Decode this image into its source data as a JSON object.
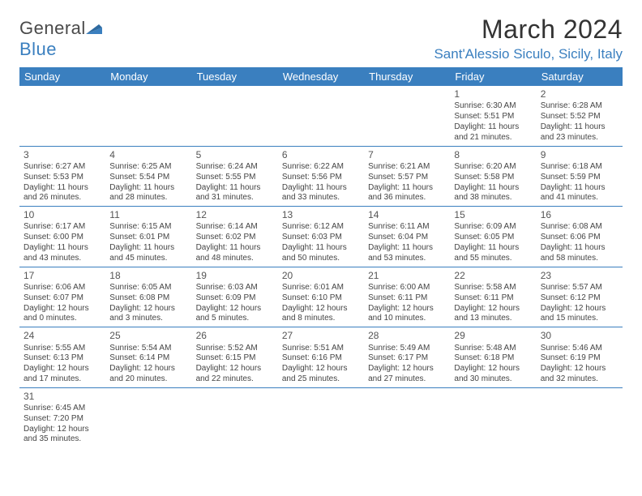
{
  "logo": {
    "textA": "General",
    "textB": "Blue"
  },
  "title": "March 2024",
  "location": "Sant'Alessio Siculo, Sicily, Italy",
  "colors": {
    "brand": "#3a7fbf",
    "headerBg": "#3a7fbf",
    "headerText": "#ffffff",
    "cellBorder": "#3a7fbf",
    "text": "#444444",
    "titleText": "#333333"
  },
  "weekdays": [
    "Sunday",
    "Monday",
    "Tuesday",
    "Wednesday",
    "Thursday",
    "Friday",
    "Saturday"
  ],
  "weeks": [
    [
      null,
      null,
      null,
      null,
      null,
      {
        "n": "1",
        "sr": "Sunrise: 6:30 AM",
        "ss": "Sunset: 5:51 PM",
        "d1": "Daylight: 11 hours",
        "d2": "and 21 minutes."
      },
      {
        "n": "2",
        "sr": "Sunrise: 6:28 AM",
        "ss": "Sunset: 5:52 PM",
        "d1": "Daylight: 11 hours",
        "d2": "and 23 minutes."
      }
    ],
    [
      {
        "n": "3",
        "sr": "Sunrise: 6:27 AM",
        "ss": "Sunset: 5:53 PM",
        "d1": "Daylight: 11 hours",
        "d2": "and 26 minutes."
      },
      {
        "n": "4",
        "sr": "Sunrise: 6:25 AM",
        "ss": "Sunset: 5:54 PM",
        "d1": "Daylight: 11 hours",
        "d2": "and 28 minutes."
      },
      {
        "n": "5",
        "sr": "Sunrise: 6:24 AM",
        "ss": "Sunset: 5:55 PM",
        "d1": "Daylight: 11 hours",
        "d2": "and 31 minutes."
      },
      {
        "n": "6",
        "sr": "Sunrise: 6:22 AM",
        "ss": "Sunset: 5:56 PM",
        "d1": "Daylight: 11 hours",
        "d2": "and 33 minutes."
      },
      {
        "n": "7",
        "sr": "Sunrise: 6:21 AM",
        "ss": "Sunset: 5:57 PM",
        "d1": "Daylight: 11 hours",
        "d2": "and 36 minutes."
      },
      {
        "n": "8",
        "sr": "Sunrise: 6:20 AM",
        "ss": "Sunset: 5:58 PM",
        "d1": "Daylight: 11 hours",
        "d2": "and 38 minutes."
      },
      {
        "n": "9",
        "sr": "Sunrise: 6:18 AM",
        "ss": "Sunset: 5:59 PM",
        "d1": "Daylight: 11 hours",
        "d2": "and 41 minutes."
      }
    ],
    [
      {
        "n": "10",
        "sr": "Sunrise: 6:17 AM",
        "ss": "Sunset: 6:00 PM",
        "d1": "Daylight: 11 hours",
        "d2": "and 43 minutes."
      },
      {
        "n": "11",
        "sr": "Sunrise: 6:15 AM",
        "ss": "Sunset: 6:01 PM",
        "d1": "Daylight: 11 hours",
        "d2": "and 45 minutes."
      },
      {
        "n": "12",
        "sr": "Sunrise: 6:14 AM",
        "ss": "Sunset: 6:02 PM",
        "d1": "Daylight: 11 hours",
        "d2": "and 48 minutes."
      },
      {
        "n": "13",
        "sr": "Sunrise: 6:12 AM",
        "ss": "Sunset: 6:03 PM",
        "d1": "Daylight: 11 hours",
        "d2": "and 50 minutes."
      },
      {
        "n": "14",
        "sr": "Sunrise: 6:11 AM",
        "ss": "Sunset: 6:04 PM",
        "d1": "Daylight: 11 hours",
        "d2": "and 53 minutes."
      },
      {
        "n": "15",
        "sr": "Sunrise: 6:09 AM",
        "ss": "Sunset: 6:05 PM",
        "d1": "Daylight: 11 hours",
        "d2": "and 55 minutes."
      },
      {
        "n": "16",
        "sr": "Sunrise: 6:08 AM",
        "ss": "Sunset: 6:06 PM",
        "d1": "Daylight: 11 hours",
        "d2": "and 58 minutes."
      }
    ],
    [
      {
        "n": "17",
        "sr": "Sunrise: 6:06 AM",
        "ss": "Sunset: 6:07 PM",
        "d1": "Daylight: 12 hours",
        "d2": "and 0 minutes."
      },
      {
        "n": "18",
        "sr": "Sunrise: 6:05 AM",
        "ss": "Sunset: 6:08 PM",
        "d1": "Daylight: 12 hours",
        "d2": "and 3 minutes."
      },
      {
        "n": "19",
        "sr": "Sunrise: 6:03 AM",
        "ss": "Sunset: 6:09 PM",
        "d1": "Daylight: 12 hours",
        "d2": "and 5 minutes."
      },
      {
        "n": "20",
        "sr": "Sunrise: 6:01 AM",
        "ss": "Sunset: 6:10 PM",
        "d1": "Daylight: 12 hours",
        "d2": "and 8 minutes."
      },
      {
        "n": "21",
        "sr": "Sunrise: 6:00 AM",
        "ss": "Sunset: 6:11 PM",
        "d1": "Daylight: 12 hours",
        "d2": "and 10 minutes."
      },
      {
        "n": "22",
        "sr": "Sunrise: 5:58 AM",
        "ss": "Sunset: 6:11 PM",
        "d1": "Daylight: 12 hours",
        "d2": "and 13 minutes."
      },
      {
        "n": "23",
        "sr": "Sunrise: 5:57 AM",
        "ss": "Sunset: 6:12 PM",
        "d1": "Daylight: 12 hours",
        "d2": "and 15 minutes."
      }
    ],
    [
      {
        "n": "24",
        "sr": "Sunrise: 5:55 AM",
        "ss": "Sunset: 6:13 PM",
        "d1": "Daylight: 12 hours",
        "d2": "and 17 minutes."
      },
      {
        "n": "25",
        "sr": "Sunrise: 5:54 AM",
        "ss": "Sunset: 6:14 PM",
        "d1": "Daylight: 12 hours",
        "d2": "and 20 minutes."
      },
      {
        "n": "26",
        "sr": "Sunrise: 5:52 AM",
        "ss": "Sunset: 6:15 PM",
        "d1": "Daylight: 12 hours",
        "d2": "and 22 minutes."
      },
      {
        "n": "27",
        "sr": "Sunrise: 5:51 AM",
        "ss": "Sunset: 6:16 PM",
        "d1": "Daylight: 12 hours",
        "d2": "and 25 minutes."
      },
      {
        "n": "28",
        "sr": "Sunrise: 5:49 AM",
        "ss": "Sunset: 6:17 PM",
        "d1": "Daylight: 12 hours",
        "d2": "and 27 minutes."
      },
      {
        "n": "29",
        "sr": "Sunrise: 5:48 AM",
        "ss": "Sunset: 6:18 PM",
        "d1": "Daylight: 12 hours",
        "d2": "and 30 minutes."
      },
      {
        "n": "30",
        "sr": "Sunrise: 5:46 AM",
        "ss": "Sunset: 6:19 PM",
        "d1": "Daylight: 12 hours",
        "d2": "and 32 minutes."
      }
    ],
    [
      {
        "n": "31",
        "sr": "Sunrise: 6:45 AM",
        "ss": "Sunset: 7:20 PM",
        "d1": "Daylight: 12 hours",
        "d2": "and 35 minutes."
      },
      null,
      null,
      null,
      null,
      null,
      null
    ]
  ]
}
